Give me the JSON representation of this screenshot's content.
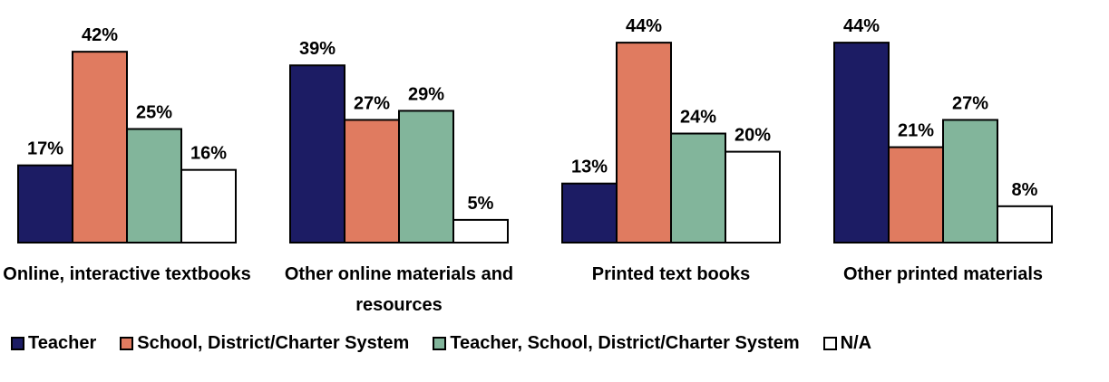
{
  "chart_data": {
    "type": "bar",
    "categories": [
      "Online, interactive textbooks",
      "Other online materials and resources",
      "Printed text books",
      "Other printed materials"
    ],
    "series": [
      {
        "name": "Teacher",
        "color": "#1c1c64",
        "values": [
          17,
          39,
          13,
          44
        ],
        "value_labels": [
          "17%",
          "39%",
          "13%",
          "44%"
        ]
      },
      {
        "name": "School, District/Charter System",
        "color": "#e07b60",
        "values": [
          42,
          27,
          44,
          21
        ],
        "value_labels": [
          "42%",
          "27%",
          "44%",
          "21%"
        ]
      },
      {
        "name": "Teacher, School, District/Charter System",
        "color": "#82b59b",
        "values": [
          25,
          29,
          24,
          27
        ],
        "value_labels": [
          "25%",
          "29%",
          "24%",
          "27%"
        ]
      },
      {
        "name": "N/A",
        "color": "#ffffff",
        "values": [
          16,
          5,
          20,
          8
        ],
        "value_labels": [
          "16%",
          "5%",
          "20%",
          "8%"
        ]
      }
    ],
    "ylim": [
      0,
      45
    ]
  }
}
